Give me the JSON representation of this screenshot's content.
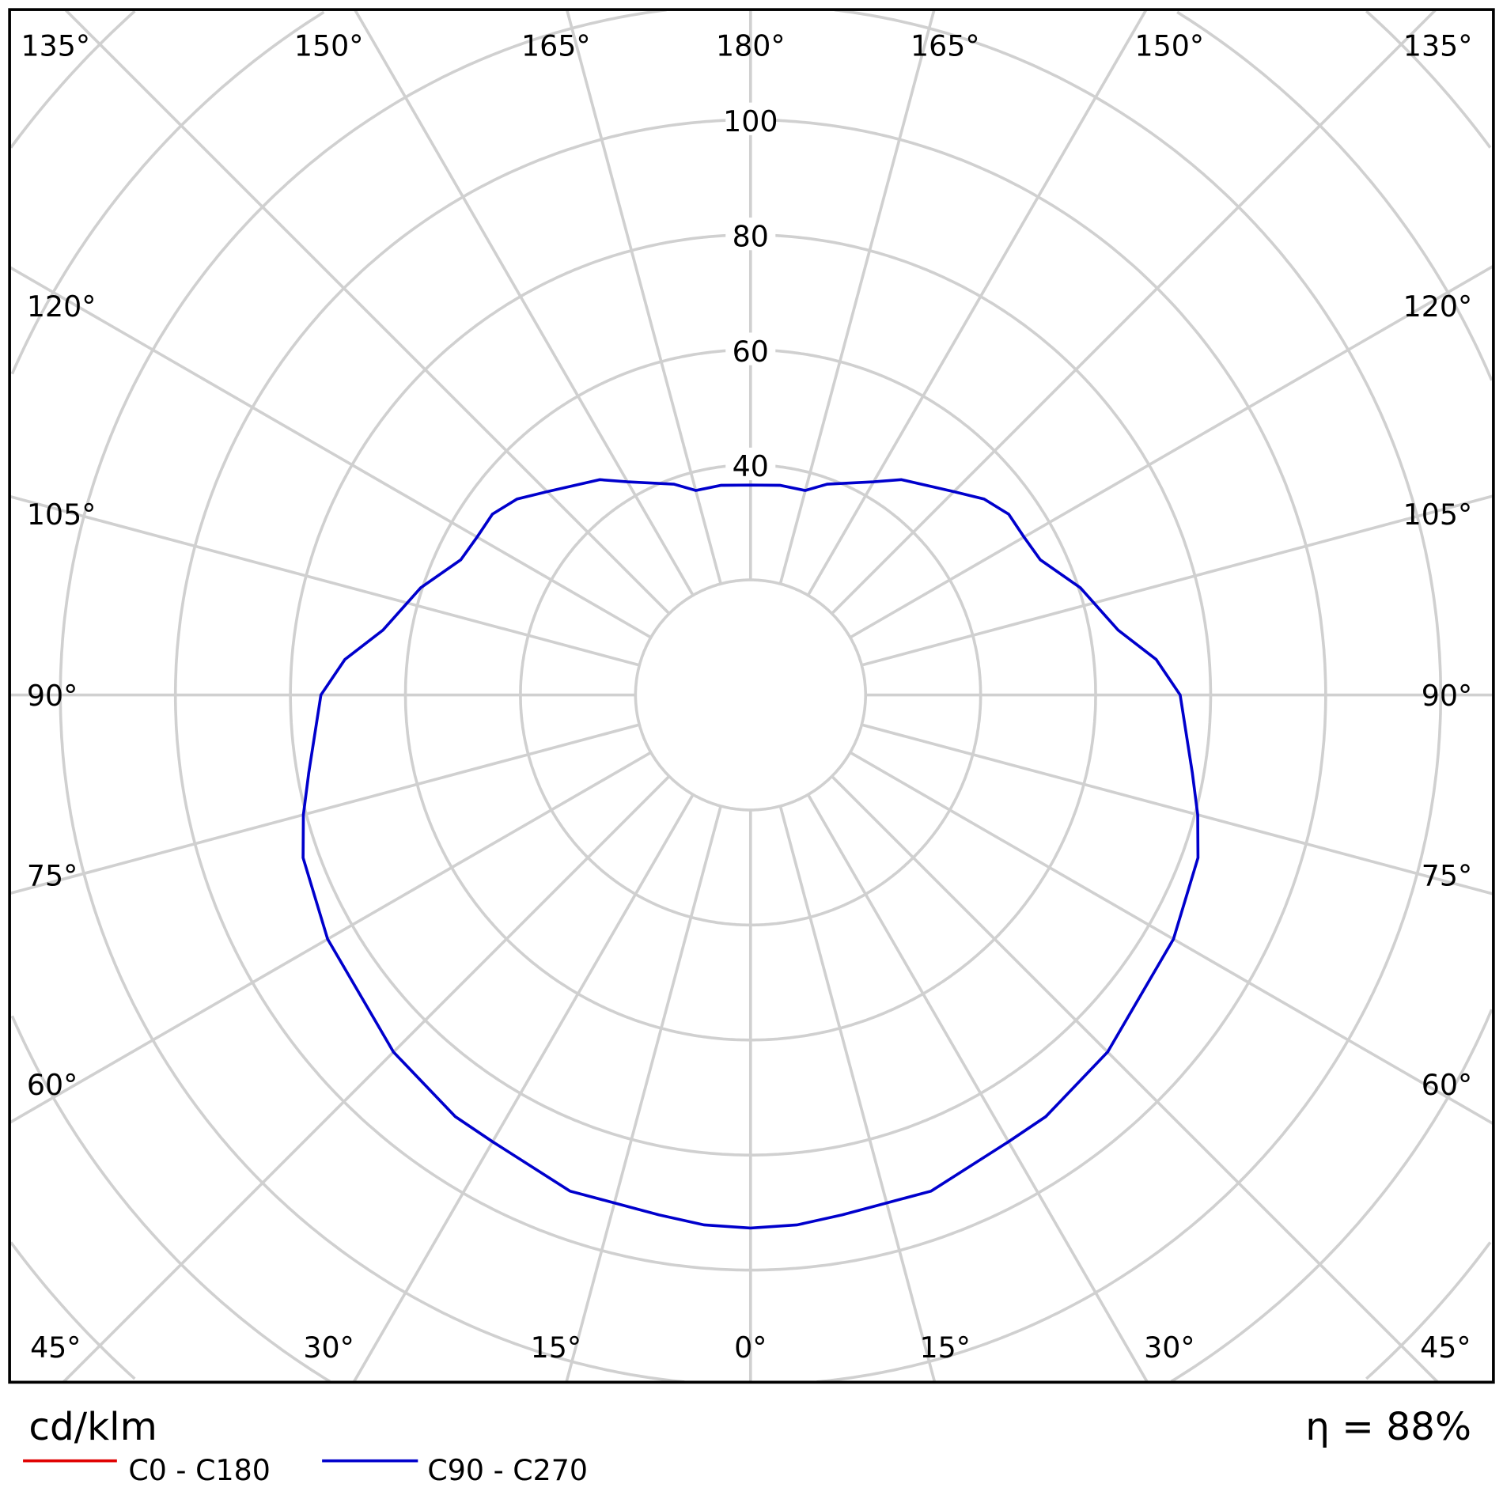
{
  "chart_data": {
    "type": "polar",
    "title": "",
    "unit_label": "cd/klm",
    "efficiency_label": "η = 88%",
    "radial_ticks": [
      40,
      60,
      80,
      100
    ],
    "radial_grid": [
      20,
      40,
      60,
      80,
      100,
      120,
      140,
      160,
      180
    ],
    "radial_range": [
      0,
      180
    ],
    "angle_labels": {
      "top": [
        "135°",
        "150°",
        "165°",
        "180°",
        "165°",
        "150°",
        "135°"
      ],
      "left": [
        "120°",
        "105°",
        "90°",
        "75°",
        "60°"
      ],
      "right": [
        "120°",
        "105°",
        "90°",
        "75°",
        "60°"
      ],
      "bottom": [
        "45°",
        "30°",
        "15°",
        "0°",
        "15°",
        "30°",
        "45°"
      ]
    },
    "grid": true,
    "legend_placement": "bottom-left",
    "colors": {
      "c0_c180": "#e00000",
      "c90_c270": "#0000cc",
      "grid": "#d0d0d0"
    },
    "series": [
      {
        "name": "C0 - C180",
        "color": "#e00000",
        "gamma": [],
        "values": []
      },
      {
        "name": "C90 - C270",
        "color": "#0000cc",
        "symmetric": true,
        "gamma": [
          0,
          5,
          10,
          20,
          30,
          35,
          45,
          60,
          70,
          75,
          80,
          90,
          95,
          100,
          108,
          115,
          120,
          125,
          130,
          135,
          145,
          150,
          160,
          165,
          172,
          180
        ],
        "values": [
          92.7,
          92.5,
          91.8,
          91.8,
          89.7,
          89.5,
          87.8,
          84.9,
          82.8,
          80.5,
          78,
          74.7,
          70.8,
          64.9,
          60.3,
          55.6,
          54.9,
          54.8,
          53,
          50,
          45.7,
          42.8,
          39,
          36.8,
          36.8,
          36.5
        ]
      }
    ]
  }
}
